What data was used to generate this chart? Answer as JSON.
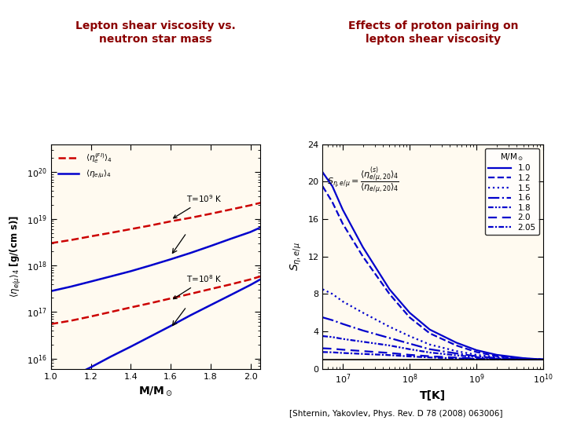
{
  "title_left": "Lepton shear viscosity vs.\nneutron star mass",
  "title_right": "Effects of proton pairing on\nlepton shear viscosity",
  "title_color": "#8B0000",
  "reference": "[Shternin, Yakovlev, Phys. Rev. D 78 (2008) 063006]",
  "left": {
    "xlabel": "M/M_sun",
    "xlim": [
      1.0,
      2.05
    ],
    "xticks": [
      1.0,
      1.2,
      1.4,
      1.6,
      1.8,
      2.0
    ],
    "lines": {
      "red_T9": {
        "color": "#CC0000",
        "style": "dashed",
        "x": [
          1.0,
          1.1,
          1.2,
          1.3,
          1.4,
          1.5,
          1.6,
          1.7,
          1.8,
          1.9,
          2.0,
          2.05
        ],
        "y": [
          3e+18,
          3.5e+18,
          4.2e+18,
          5e+18,
          6e+18,
          7.2e+18,
          8.8e+18,
          1.05e+19,
          1.28e+19,
          1.58e+19,
          1.95e+19,
          2.2e+19
        ]
      },
      "blue_T9": {
        "color": "#0000CC",
        "style": "solid",
        "x": [
          1.0,
          1.1,
          1.2,
          1.3,
          1.4,
          1.5,
          1.6,
          1.7,
          1.8,
          1.9,
          2.0,
          2.05
        ],
        "y": [
          2.8e+17,
          3.5e+17,
          4.5e+17,
          5.8e+17,
          7.5e+17,
          1e+18,
          1.35e+18,
          1.85e+18,
          2.6e+18,
          3.7e+18,
          5.2e+18,
          6.5e+18
        ]
      },
      "red_T8": {
        "color": "#CC0000",
        "style": "dashed",
        "x": [
          1.0,
          1.1,
          1.2,
          1.3,
          1.4,
          1.5,
          1.6,
          1.7,
          1.8,
          1.9,
          2.0,
          2.05
        ],
        "y": [
          5.5e+16,
          6.5e+16,
          8e+16,
          1e+17,
          1.25e+17,
          1.55e+17,
          1.95e+17,
          2.45e+17,
          3.1e+17,
          3.9e+17,
          5e+17,
          5.8e+17
        ]
      },
      "blue_T8": {
        "color": "#0000CC",
        "style": "solid",
        "x": [
          1.0,
          1.1,
          1.2,
          1.3,
          1.4,
          1.5,
          1.6,
          1.7,
          1.8,
          1.9,
          2.0,
          2.05
        ],
        "y": [
          2500000000000000.0,
          4000000000000000.0,
          6500000000000000.0,
          1.1e+16,
          1.8e+16,
          3e+16,
          5e+16,
          8.5e+16,
          1.4e+17,
          2.3e+17,
          3.8e+17,
          5e+17
        ]
      }
    }
  },
  "right": {
    "xlabel": "T[K]",
    "ylabel": "S_eta",
    "xlim_log": [
      5000000.0,
      10000000000.0
    ],
    "ylim": [
      0,
      24
    ],
    "yticks": [
      0,
      4,
      8,
      12,
      16,
      20,
      24
    ],
    "masses": [
      "1.0",
      "1.2",
      "1.5",
      "1.6",
      "1.8",
      "2.0",
      "2.05"
    ],
    "color": "#0000CC",
    "curves": {
      "1.0": {
        "T": [
          5000000.0,
          7000000.0,
          10000000.0,
          20000000.0,
          50000000.0,
          100000000.0,
          200000000.0,
          500000000.0,
          1000000000.0,
          2000000000.0,
          5000000000.0,
          10000000000.0
        ],
        "S": [
          21.0,
          19.5,
          17.0,
          13.0,
          8.5,
          6.0,
          4.2,
          2.8,
          2.0,
          1.5,
          1.15,
          1.0
        ]
      },
      "1.2": {
        "T": [
          5000000.0,
          7000000.0,
          10000000.0,
          20000000.0,
          50000000.0,
          100000000.0,
          200000000.0,
          500000000.0,
          1000000000.0,
          2000000000.0,
          5000000000.0,
          10000000000.0
        ],
        "S": [
          19.5,
          17.8,
          15.5,
          12.0,
          8.0,
          5.5,
          3.8,
          2.5,
          1.8,
          1.35,
          1.1,
          1.0
        ]
      },
      "1.5": {
        "T": [
          5000000.0,
          7000000.0,
          10000000.0,
          20000000.0,
          50000000.0,
          100000000.0,
          200000000.0,
          500000000.0,
          1000000000.0,
          2000000000.0,
          5000000000.0,
          10000000000.0
        ],
        "S": [
          8.5,
          8.0,
          7.2,
          6.0,
          4.5,
          3.5,
          2.6,
          1.9,
          1.5,
          1.25,
          1.05,
          1.0
        ]
      },
      "1.6": {
        "T": [
          5000000.0,
          7000000.0,
          10000000.0,
          20000000.0,
          50000000.0,
          100000000.0,
          200000000.0,
          500000000.0,
          1000000000.0,
          2000000000.0,
          5000000000.0,
          10000000000.0
        ],
        "S": [
          5.5,
          5.2,
          4.8,
          4.1,
          3.3,
          2.7,
          2.1,
          1.65,
          1.35,
          1.15,
          1.03,
          1.0
        ]
      },
      "1.8": {
        "T": [
          5000000.0,
          7000000.0,
          10000000.0,
          20000000.0,
          50000000.0,
          100000000.0,
          200000000.0,
          500000000.0,
          1000000000.0,
          2000000000.0,
          5000000000.0,
          10000000000.0
        ],
        "S": [
          3.5,
          3.4,
          3.2,
          2.9,
          2.5,
          2.1,
          1.75,
          1.45,
          1.25,
          1.1,
          1.02,
          1.0
        ]
      },
      "2.0": {
        "T": [
          5000000.0,
          7000000.0,
          10000000.0,
          20000000.0,
          50000000.0,
          100000000.0,
          200000000.0,
          500000000.0,
          1000000000.0,
          2000000000.0,
          5000000000.0,
          10000000000.0
        ],
        "S": [
          2.2,
          2.15,
          2.05,
          1.9,
          1.7,
          1.5,
          1.35,
          1.2,
          1.1,
          1.05,
          1.01,
          1.0
        ]
      },
      "2.05": {
        "T": [
          5000000.0,
          7000000.0,
          10000000.0,
          20000000.0,
          50000000.0,
          100000000.0,
          200000000.0,
          500000000.0,
          1000000000.0,
          2000000000.0,
          5000000000.0,
          10000000000.0
        ],
        "S": [
          1.8,
          1.77,
          1.7,
          1.6,
          1.47,
          1.33,
          1.22,
          1.12,
          1.06,
          1.03,
          1.005,
          1.0
        ]
      }
    }
  },
  "bg_color": "#FFFFFF",
  "plot_bg_color": "#FFFAF0"
}
